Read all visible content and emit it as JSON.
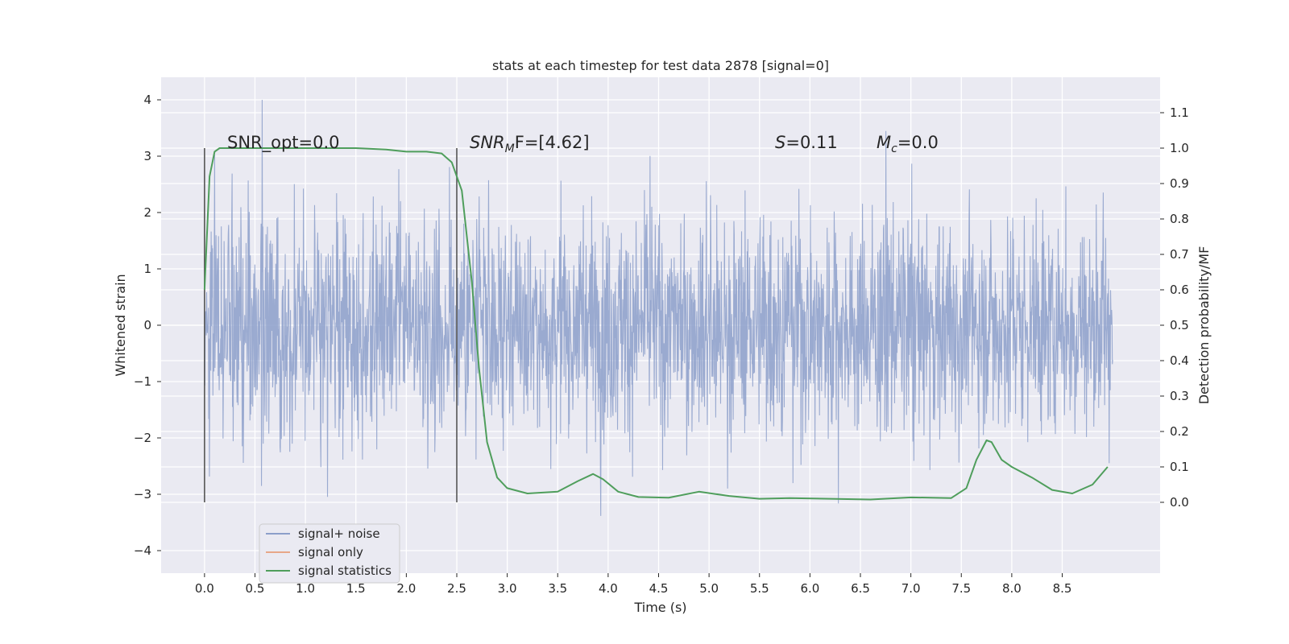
{
  "chart_data": {
    "type": "line",
    "title": "stats at each timestep for test data 2878 [signal=0]",
    "xlabel": "Time (s)",
    "ylabel": "Whitened strain",
    "ylabel_right": "Detection probability/MF",
    "xlim": [
      -0.43,
      9.47
    ],
    "ylim": [
      -4.4,
      4.4
    ],
    "ylim_right": [
      -0.2,
      1.2
    ],
    "x_ticks": [
      "0.0",
      "0.5",
      "1.0",
      "1.5",
      "2.0",
      "2.5",
      "3.0",
      "3.5",
      "4.0",
      "4.5",
      "5.0",
      "5.5",
      "6.0",
      "6.5",
      "7.0",
      "7.5",
      "8.0",
      "8.5"
    ],
    "y_ticks": [
      "4",
      "3",
      "2",
      "1",
      "0",
      "−1",
      "−2",
      "−3",
      "−4"
    ],
    "y_right_ticks": [
      "1.1",
      "1.0",
      "0.9",
      "0.8",
      "0.7",
      "0.6",
      "0.5",
      "0.4",
      "0.3",
      "0.2",
      "0.1",
      "0.0"
    ],
    "grid": true,
    "legend_position": "lower-left",
    "annotations": {
      "snr_opt": "SNR_opt=0.0",
      "snr_mf_base": "SNR",
      "snr_mf_sub": "M",
      "snr_mf_rest": "F=[4.62]",
      "s_italic": "S",
      "s_rest": "=0.11",
      "mc_italic": "M",
      "mc_sub": "c",
      "mc_rest": "=0.0"
    },
    "vlines": [
      0.0,
      2.5
    ],
    "noise_series": {
      "name": "signal+ noise",
      "color": "#8c9fca",
      "x_range": [
        0.0,
        9.0
      ],
      "std": 0.95
    },
    "signal_series": {
      "name": "signal only",
      "color": "#e7a788"
    },
    "stat_series": {
      "name": "signal statistics",
      "color": "#4f9e5c",
      "x": [
        0.0,
        0.05,
        0.1,
        0.15,
        0.2,
        0.3,
        0.5,
        1.0,
        1.5,
        1.8,
        2.0,
        2.2,
        2.35,
        2.45,
        2.55,
        2.65,
        2.72,
        2.8,
        2.9,
        3.0,
        3.2,
        3.5,
        3.7,
        3.85,
        3.95,
        4.1,
        4.3,
        4.6,
        4.9,
        5.2,
        5.5,
        5.8,
        6.2,
        6.6,
        7.0,
        7.4,
        7.55,
        7.65,
        7.75,
        7.8,
        7.9,
        8.0,
        8.2,
        8.4,
        8.6,
        8.8,
        8.95
      ],
      "values": [
        0.6,
        0.92,
        0.99,
        1.0,
        1.0,
        1.0,
        1.0,
        1.0,
        1.0,
        0.996,
        0.99,
        0.99,
        0.985,
        0.96,
        0.88,
        0.62,
        0.38,
        0.17,
        0.07,
        0.04,
        0.025,
        0.03,
        0.06,
        0.08,
        0.065,
        0.03,
        0.015,
        0.013,
        0.03,
        0.018,
        0.01,
        0.012,
        0.01,
        0.008,
        0.014,
        0.012,
        0.04,
        0.12,
        0.175,
        0.17,
        0.12,
        0.1,
        0.07,
        0.035,
        0.025,
        0.05,
        0.1
      ]
    }
  }
}
